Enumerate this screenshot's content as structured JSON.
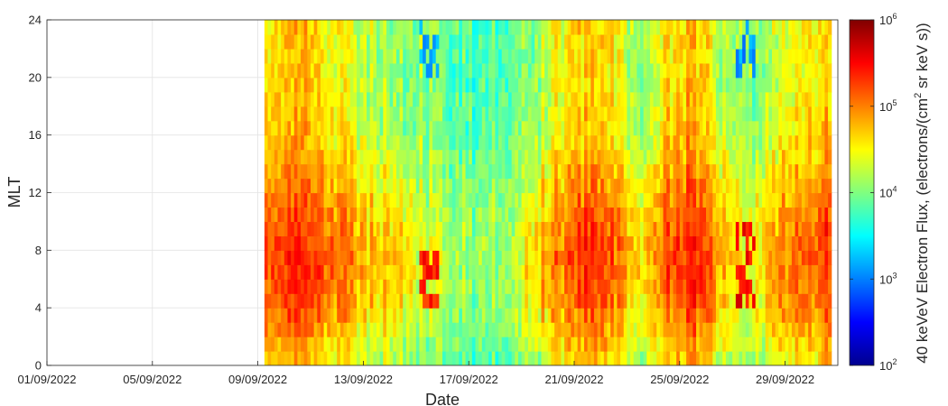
{
  "chart_data": {
    "type": "heatmap",
    "title": "",
    "xlabel": "Date",
    "ylabel": "MLT",
    "colorbar_label": "40 keVeV Electron Flux, (electrons/(cm² sr keV s))",
    "colorbar_label_parts": {
      "before_superscript": "40 keVeV Electron Flux, (electrons/(cm",
      "superscript": "2",
      "after_superscript": " sr keV s))"
    },
    "colormap": "jet",
    "color_scale": "log",
    "x_type": "date",
    "xlim": [
      "2022-09-01",
      "2022-10-01"
    ],
    "ylim": [
      0,
      24
    ],
    "x_ticks": [
      "2022-09-01",
      "2022-09-05",
      "2022-09-09",
      "2022-09-13",
      "2022-09-17",
      "2022-09-21",
      "2022-09-25",
      "2022-09-29"
    ],
    "x_tick_labels": [
      "01/09/2022",
      "05/09/2022",
      "09/09/2022",
      "13/09/2022",
      "17/09/2022",
      "21/09/2022",
      "25/09/2022",
      "29/09/2022"
    ],
    "y_ticks": [
      0,
      4,
      8,
      12,
      16,
      20,
      24
    ],
    "y_tick_labels": [
      "0",
      "4",
      "8",
      "12",
      "16",
      "20",
      "24"
    ],
    "colorbar_ticks": [
      100,
      1000,
      10000,
      100000,
      1000000
    ],
    "colorbar_tick_base": [
      "10",
      "10",
      "10",
      "10",
      "10"
    ],
    "colorbar_tick_exponents": [
      "2",
      "3",
      "4",
      "5",
      "6"
    ],
    "clim": [
      100,
      1000000
    ],
    "grid": true,
    "data_start": "2022-09-09 06:00",
    "data_end": "2022-09-30 18:00",
    "mlt_bin_width": 1,
    "daily_mean_log10_flux": [
      {
        "date": "2022-09-09",
        "value": 4.9
      },
      {
        "date": "2022-09-10",
        "value": 5.0
      },
      {
        "date": "2022-09-11",
        "value": 4.9
      },
      {
        "date": "2022-09-12",
        "value": 4.7
      },
      {
        "date": "2022-09-13",
        "value": 4.5
      },
      {
        "date": "2022-09-14",
        "value": 4.4
      },
      {
        "date": "2022-09-15",
        "value": 4.2
      },
      {
        "date": "2022-09-16",
        "value": 4.0
      },
      {
        "date": "2022-09-17",
        "value": 3.9
      },
      {
        "date": "2022-09-18",
        "value": 4.1
      },
      {
        "date": "2022-09-19",
        "value": 4.4
      },
      {
        "date": "2022-09-20",
        "value": 4.8
      },
      {
        "date": "2022-09-21",
        "value": 5.0
      },
      {
        "date": "2022-09-22",
        "value": 4.8
      },
      {
        "date": "2022-09-23",
        "value": 4.4
      },
      {
        "date": "2022-09-24",
        "value": 4.9
      },
      {
        "date": "2022-09-25",
        "value": 5.1
      },
      {
        "date": "2022-09-26",
        "value": 4.6
      },
      {
        "date": "2022-09-27",
        "value": 4.2
      },
      {
        "date": "2022-09-28",
        "value": 4.6
      },
      {
        "date": "2022-09-29",
        "value": 4.8
      },
      {
        "date": "2022-09-30",
        "value": 5.0
      }
    ],
    "mlt_profile_log10_offset": [
      {
        "mlt": 0,
        "value": -0.3
      },
      {
        "mlt": 4,
        "value": 0.15
      },
      {
        "mlt": 8,
        "value": 0.3
      },
      {
        "mlt": 12,
        "value": 0.05
      },
      {
        "mlt": 16,
        "value": -0.25
      },
      {
        "mlt": 20,
        "value": -0.35
      },
      {
        "mlt": 24,
        "value": -0.3
      }
    ],
    "annotations": [
      {
        "date": "2022-09-15 12:00",
        "mlt_range": [
          20,
          24
        ],
        "log10_flux": 3.2
      },
      {
        "date": "2022-09-15 12:00",
        "mlt_range": [
          4,
          8
        ],
        "log10_flux": 5.4
      },
      {
        "date": "2022-09-27 12:00",
        "mlt_range": [
          20,
          24
        ],
        "log10_flux": 3.1
      },
      {
        "date": "2022-09-27 12:00",
        "mlt_range": [
          4,
          10
        ],
        "log10_flux": 5.5
      }
    ]
  }
}
